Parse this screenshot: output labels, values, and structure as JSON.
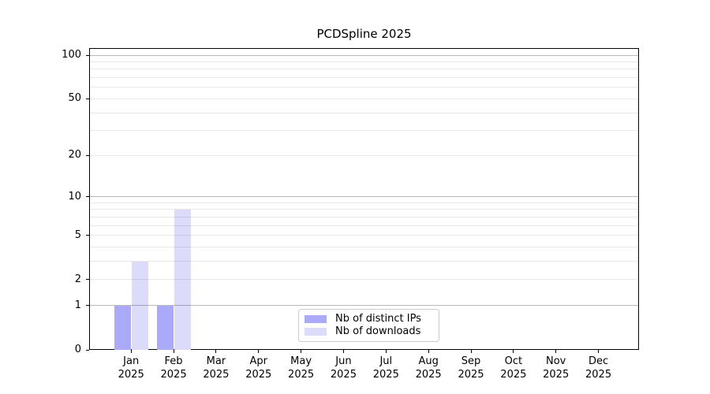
{
  "title": "PCDSpline 2025",
  "chart_data": {
    "type": "bar",
    "title": "PCDSpline 2025",
    "year": "2025",
    "categories": [
      "Jan",
      "Feb",
      "Mar",
      "Apr",
      "May",
      "Jun",
      "Jul",
      "Aug",
      "Sep",
      "Oct",
      "Nov",
      "Dec"
    ],
    "series": [
      {
        "name": "Nb of distinct IPs",
        "color": "#aaaaf8",
        "values": [
          1,
          1,
          0,
          0,
          0,
          0,
          0,
          0,
          0,
          0,
          0,
          0
        ]
      },
      {
        "name": "Nb of downloads",
        "color": "#dcdcfa",
        "values": [
          3,
          8,
          0,
          0,
          0,
          0,
          0,
          0,
          0,
          0,
          0,
          0
        ]
      }
    ],
    "yscale": "log1p",
    "ylim": [
      0,
      112
    ],
    "y_major_ticks": [
      0,
      1,
      2,
      5,
      10,
      20,
      50,
      100
    ],
    "y_minor_ticks": [
      3,
      4,
      6,
      7,
      8,
      9,
      30,
      40,
      60,
      70,
      80,
      90
    ],
    "decade_gridlines": [
      1,
      10,
      100
    ],
    "grid": "on",
    "legend_position": "lower center",
    "xlabel": "",
    "ylabel": ""
  },
  "legend": {
    "items": [
      "Nb of distinct IPs",
      "Nb of downloads"
    ]
  }
}
